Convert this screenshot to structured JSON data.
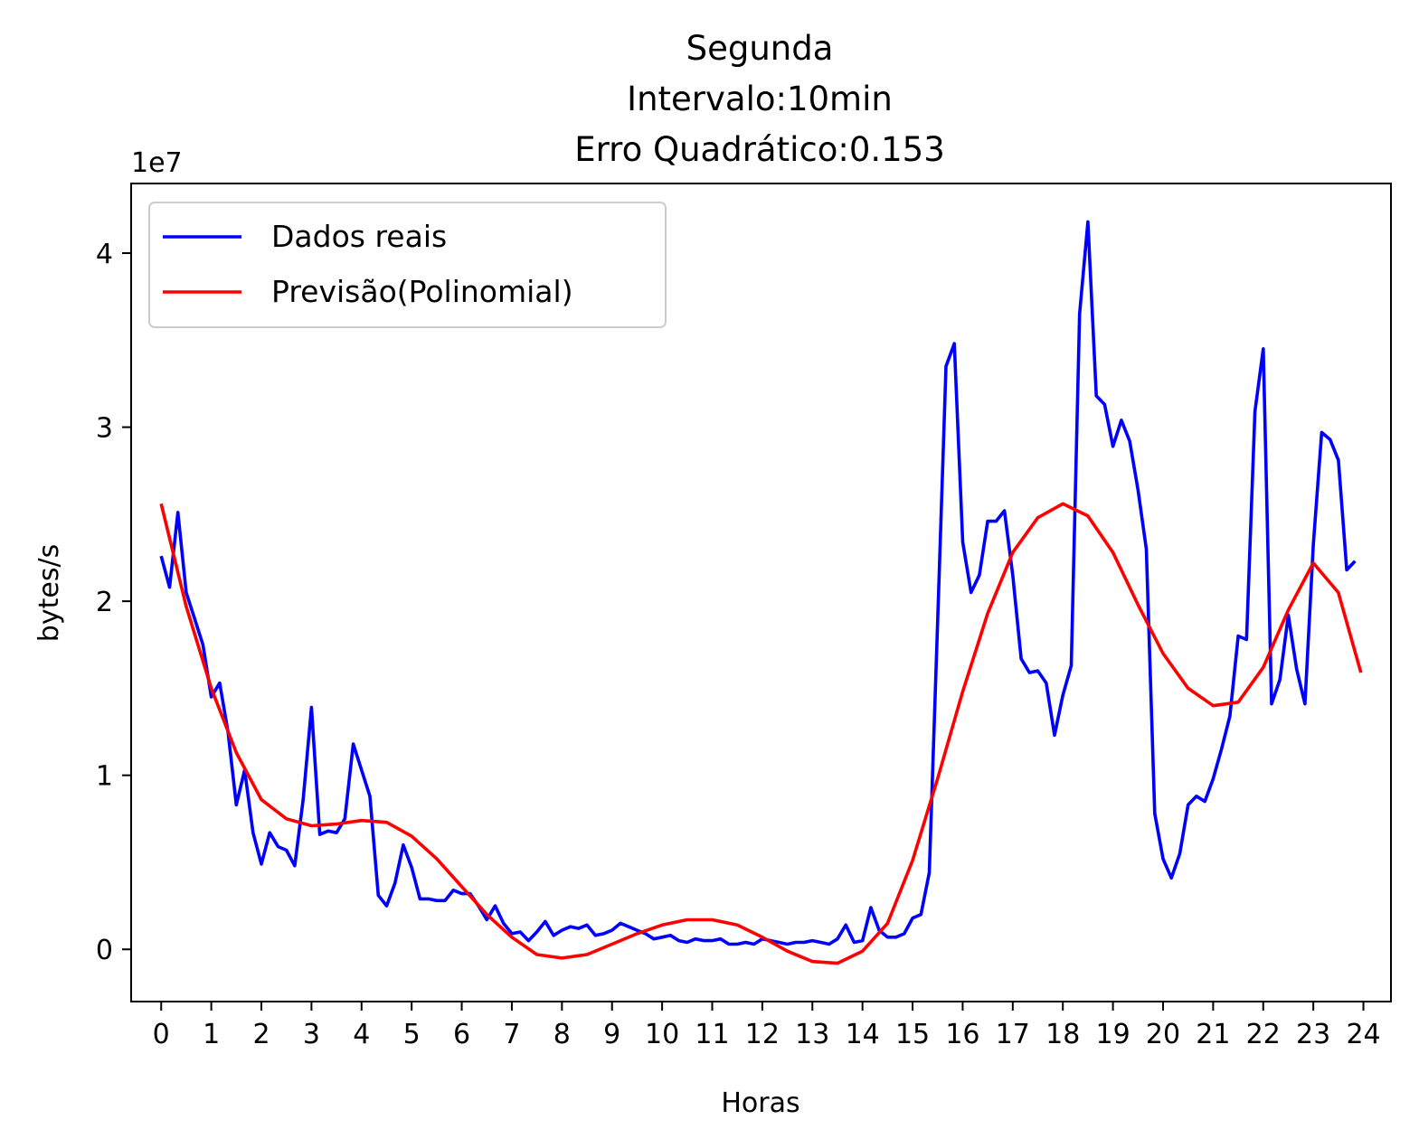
{
  "chart_data": {
    "type": "line",
    "title_lines": [
      "Segunda",
      "Intervalo:10min",
      "Erro Quadrático:0.153"
    ],
    "xlabel": "Horas",
    "ylabel": "bytes/s",
    "y_offset_text": "1e7",
    "xlim": [
      -0.6,
      24.55
    ],
    "ylim": [
      -3.0,
      44.0
    ],
    "y_unit_scale": 10000000,
    "x_ticks": [
      0,
      1,
      2,
      3,
      4,
      5,
      6,
      7,
      8,
      9,
      10,
      11,
      12,
      13,
      14,
      15,
      16,
      17,
      18,
      19,
      20,
      21,
      22,
      23,
      24
    ],
    "x_tick_labels": [
      "0",
      "1",
      "2",
      "3",
      "4",
      "5",
      "6",
      "7",
      "8",
      "9",
      "10",
      "11",
      "12",
      "13",
      "14",
      "15",
      "16",
      "17",
      "18",
      "19",
      "20",
      "21",
      "22",
      "23",
      "24"
    ],
    "y_ticks": [
      0,
      10,
      20,
      30,
      40
    ],
    "y_tick_labels": [
      "0",
      "1",
      "2",
      "3",
      "4"
    ],
    "grid": false,
    "legend": {
      "placement": "upper-left",
      "entries": [
        "Dados reais",
        "Previsão(Polinomial)"
      ]
    },
    "series": [
      {
        "name": "Dados reais",
        "color": "#0000ff",
        "x_start": 0,
        "x_step": 0.16667,
        "values": [
          22.6,
          20.8,
          25.1,
          20.5,
          19.0,
          17.5,
          14.5,
          15.3,
          12.5,
          8.3,
          10.3,
          6.7,
          4.9,
          6.7,
          5.9,
          5.7,
          4.8,
          8.6,
          13.9,
          6.6,
          6.8,
          6.7,
          7.5,
          11.8,
          10.3,
          8.8,
          3.1,
          2.5,
          3.8,
          6.0,
          4.7,
          2.9,
          2.9,
          2.8,
          2.8,
          3.4,
          3.2,
          3.2,
          2.5,
          1.7,
          2.5,
          1.5,
          0.9,
          1.0,
          0.5,
          1.0,
          1.6,
          0.8,
          1.1,
          1.3,
          1.2,
          1.4,
          0.8,
          0.9,
          1.1,
          1.5,
          1.3,
          1.1,
          0.9,
          0.6,
          0.7,
          0.8,
          0.5,
          0.4,
          0.6,
          0.5,
          0.5,
          0.6,
          0.3,
          0.3,
          0.4,
          0.3,
          0.6,
          0.5,
          0.4,
          0.3,
          0.4,
          0.4,
          0.5,
          0.4,
          0.3,
          0.6,
          1.4,
          0.4,
          0.5,
          2.4,
          1.1,
          0.7,
          0.7,
          0.9,
          1.8,
          2.0,
          4.4,
          18.9,
          33.5,
          34.8,
          23.4,
          20.5,
          21.5,
          24.6,
          24.6,
          25.2,
          21.5,
          16.7,
          15.9,
          16.0,
          15.3,
          12.3,
          14.6,
          16.3,
          36.5,
          41.8,
          31.8,
          31.3,
          28.9,
          30.4,
          29.2,
          26.4,
          23.0,
          7.8,
          5.2,
          4.1,
          5.5,
          8.3,
          8.8,
          8.5,
          9.8,
          11.5,
          13.4,
          18.0,
          17.8,
          30.9,
          34.5,
          14.1,
          15.5,
          19.2,
          16.1,
          14.1,
          23.3,
          29.7,
          29.3,
          28.1,
          21.8,
          22.3
        ]
      },
      {
        "name": "Previsão(Polinomial)",
        "color": "#ff0000",
        "x": [
          0,
          0.5,
          1,
          1.5,
          2,
          2.5,
          3,
          3.5,
          4,
          4.5,
          5,
          5.5,
          6,
          6.5,
          7,
          7.5,
          8,
          8.5,
          9,
          9.5,
          10,
          10.5,
          11,
          11.5,
          12,
          12.5,
          13,
          13.5,
          14,
          14.5,
          15,
          15.5,
          16,
          16.5,
          17,
          17.5,
          18,
          18.5,
          19,
          19.5,
          20,
          20.5,
          21,
          21.5,
          22,
          22.5,
          23,
          23.5,
          23.95
        ],
        "values": [
          25.6,
          19.7,
          15.0,
          11.3,
          8.6,
          7.5,
          7.1,
          7.2,
          7.4,
          7.3,
          6.5,
          5.2,
          3.6,
          2.0,
          0.7,
          -0.3,
          -0.5,
          -0.3,
          0.3,
          0.9,
          1.4,
          1.7,
          1.7,
          1.4,
          0.7,
          -0.1,
          -0.7,
          -0.8,
          -0.1,
          1.5,
          5.1,
          9.8,
          14.8,
          19.3,
          22.8,
          24.8,
          25.6,
          24.9,
          22.8,
          19.8,
          17.0,
          15.0,
          14.0,
          14.2,
          16.2,
          19.5,
          22.2,
          20.5,
          15.9
        ]
      }
    ]
  }
}
